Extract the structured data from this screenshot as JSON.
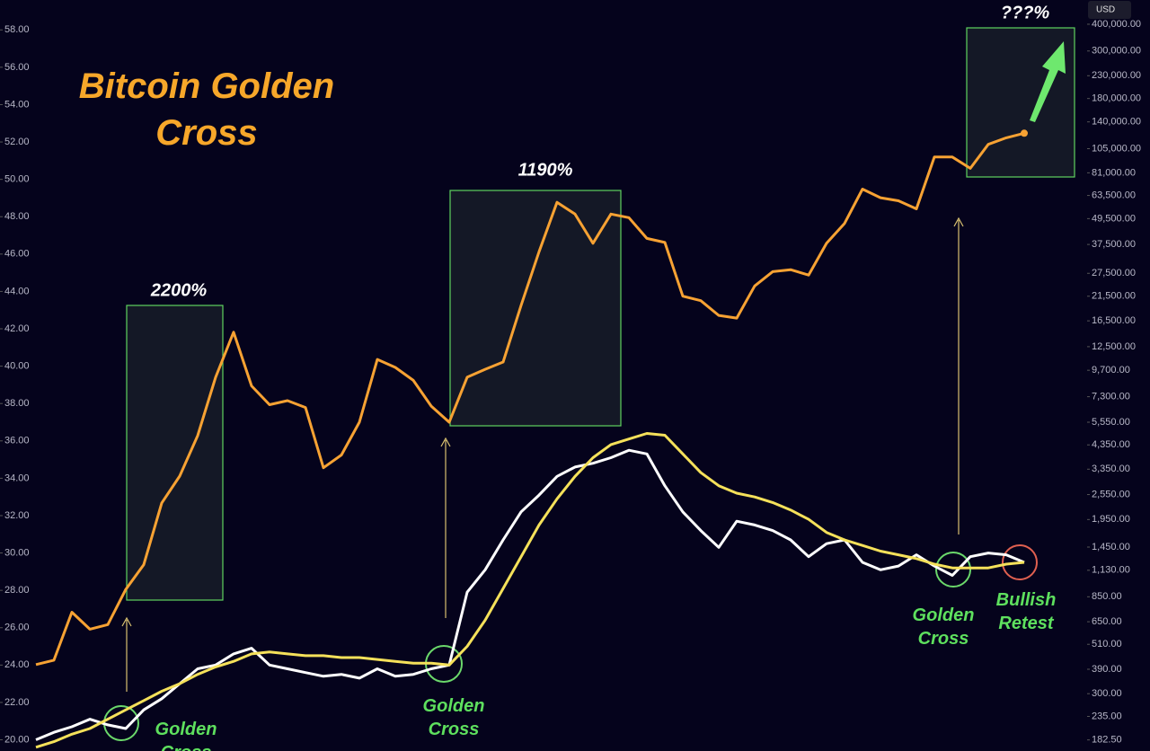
{
  "chart_data": {
    "type": "line",
    "title": "Bitcoin Golden Cross",
    "y2_unit": "USD",
    "annotations": [
      "2200%",
      "1190%",
      "???%",
      "Golden Cross",
      "Golden Cross",
      "Golden Cross",
      "Bullish Retest"
    ],
    "ylim": [
      19.4,
      59.6
    ],
    "yticks": [
      {
        "value": 20,
        "label": "20.00"
      },
      {
        "value": 22,
        "label": "22.00"
      },
      {
        "value": 24,
        "label": "24.00"
      },
      {
        "value": 26,
        "label": "26.00"
      },
      {
        "value": 28,
        "label": "28.00"
      },
      {
        "value": 30,
        "label": "30.00"
      },
      {
        "value": 32,
        "label": "32.00"
      },
      {
        "value": 34,
        "label": "34.00"
      },
      {
        "value": 36,
        "label": "36.00"
      },
      {
        "value": 38,
        "label": "38.00"
      },
      {
        "value": 40,
        "label": "40.00"
      },
      {
        "value": 42,
        "label": "42.00"
      },
      {
        "value": 44,
        "label": "44.00"
      },
      {
        "value": 46,
        "label": "46.00"
      },
      {
        "value": 48,
        "label": "48.00"
      },
      {
        "value": 50,
        "label": "50.00"
      },
      {
        "value": 52,
        "label": "52.00"
      },
      {
        "value": 54,
        "label": "54.00"
      },
      {
        "value": 56,
        "label": "56.00"
      },
      {
        "value": 58,
        "label": "58.00"
      }
    ],
    "y2scale": "log",
    "y2lim": [
      162,
      519000
    ],
    "y2ticks": [
      {
        "value": 182.5,
        "label": "182.50"
      },
      {
        "value": 235,
        "label": "235.00"
      },
      {
        "value": 300,
        "label": "300.00"
      },
      {
        "value": 390,
        "label": "390.00"
      },
      {
        "value": 510,
        "label": "510.00"
      },
      {
        "value": 650,
        "label": "650.00"
      },
      {
        "value": 850,
        "label": "850.00"
      },
      {
        "value": 1130,
        "label": "1,130.00"
      },
      {
        "value": 1450,
        "label": "1,450.00"
      },
      {
        "value": 1950,
        "label": "1,950.00"
      },
      {
        "value": 2550,
        "label": "2,550.00"
      },
      {
        "value": 3350,
        "label": "3,350.00"
      },
      {
        "value": 4350,
        "label": "4,350.00"
      },
      {
        "value": 5550,
        "label": "5,550.00"
      },
      {
        "value": 7300,
        "label": "7,300.00"
      },
      {
        "value": 9700,
        "label": "9,700.00"
      },
      {
        "value": 12500,
        "label": "12,500.00"
      },
      {
        "value": 16500,
        "label": "16,500.00"
      },
      {
        "value": 21500,
        "label": "21,500.00"
      },
      {
        "value": 27500,
        "label": "27,500.00"
      },
      {
        "value": 37500,
        "label": "37,500.00"
      },
      {
        "value": 49500,
        "label": "49,500.00"
      },
      {
        "value": 63500,
        "label": "63,500.00"
      },
      {
        "value": 81000,
        "label": "81,000.00"
      },
      {
        "value": 105000,
        "label": "105,000.00"
      },
      {
        "value": 140000,
        "label": "140,000.00"
      },
      {
        "value": 180000,
        "label": "180,000.00"
      },
      {
        "value": 230000,
        "label": "230,000.00"
      },
      {
        "value": 300000,
        "label": "300,000.00"
      },
      {
        "value": 400000,
        "label": "400,000.00"
      }
    ],
    "series": [
      {
        "color": "#f7a233",
        "axis": "y2",
        "values": [
          410,
          430,
          720,
          600,
          630,
          920,
          1200,
          2330,
          3110,
          4800,
          9000,
          14600,
          8200,
          6700,
          7000,
          6500,
          3400,
          3900,
          5550,
          10900,
          10000,
          8700,
          6600,
          5550,
          9000,
          9800,
          10600,
          19500,
          34700,
          59000,
          52000,
          38000,
          52000,
          50000,
          40000,
          38300,
          21500,
          20500,
          17500,
          17000,
          24000,
          28000,
          28600,
          27000,
          38000,
          47000,
          68000,
          62000,
          60000,
          55000,
          96000,
          96000,
          85000,
          110000,
          118000,
          124000
        ]
      },
      {
        "color": "#ffffff",
        "values": [
          20.0,
          20.4,
          20.7,
          21.1,
          20.8,
          20.6,
          21.6,
          22.2,
          23.0,
          23.8,
          24.0,
          24.6,
          24.9,
          24.0,
          23.8,
          23.6,
          23.4,
          23.5,
          23.3,
          23.8,
          23.4,
          23.5,
          23.8,
          24.0,
          27.9,
          29.1,
          30.7,
          32.2,
          33.1,
          34.1,
          34.6,
          34.8,
          35.1,
          35.5,
          35.3,
          33.6,
          32.2,
          31.2,
          30.3,
          31.7,
          31.5,
          31.2,
          30.7,
          29.8,
          30.5,
          30.7,
          29.5,
          29.1,
          29.3,
          29.9,
          29.3,
          28.8,
          29.8,
          30.0,
          29.9,
          29.5
        ]
      },
      {
        "color": "#f5e15a",
        "values": [
          19.6,
          19.9,
          20.3,
          20.6,
          21.1,
          21.6,
          22.1,
          22.6,
          23.0,
          23.5,
          23.9,
          24.2,
          24.6,
          24.7,
          24.6,
          24.5,
          24.5,
          24.4,
          24.4,
          24.3,
          24.2,
          24.1,
          24.1,
          24.0,
          25.0,
          26.4,
          28.1,
          29.8,
          31.5,
          32.9,
          34.1,
          35.1,
          35.8,
          36.1,
          36.4,
          36.3,
          35.3,
          34.3,
          33.6,
          33.2,
          33.0,
          32.7,
          32.3,
          31.8,
          31.1,
          30.7,
          30.4,
          30.1,
          29.9,
          29.7,
          29.4,
          29.2,
          29.2,
          29.2,
          29.4,
          29.5
        ]
      }
    ]
  }
}
